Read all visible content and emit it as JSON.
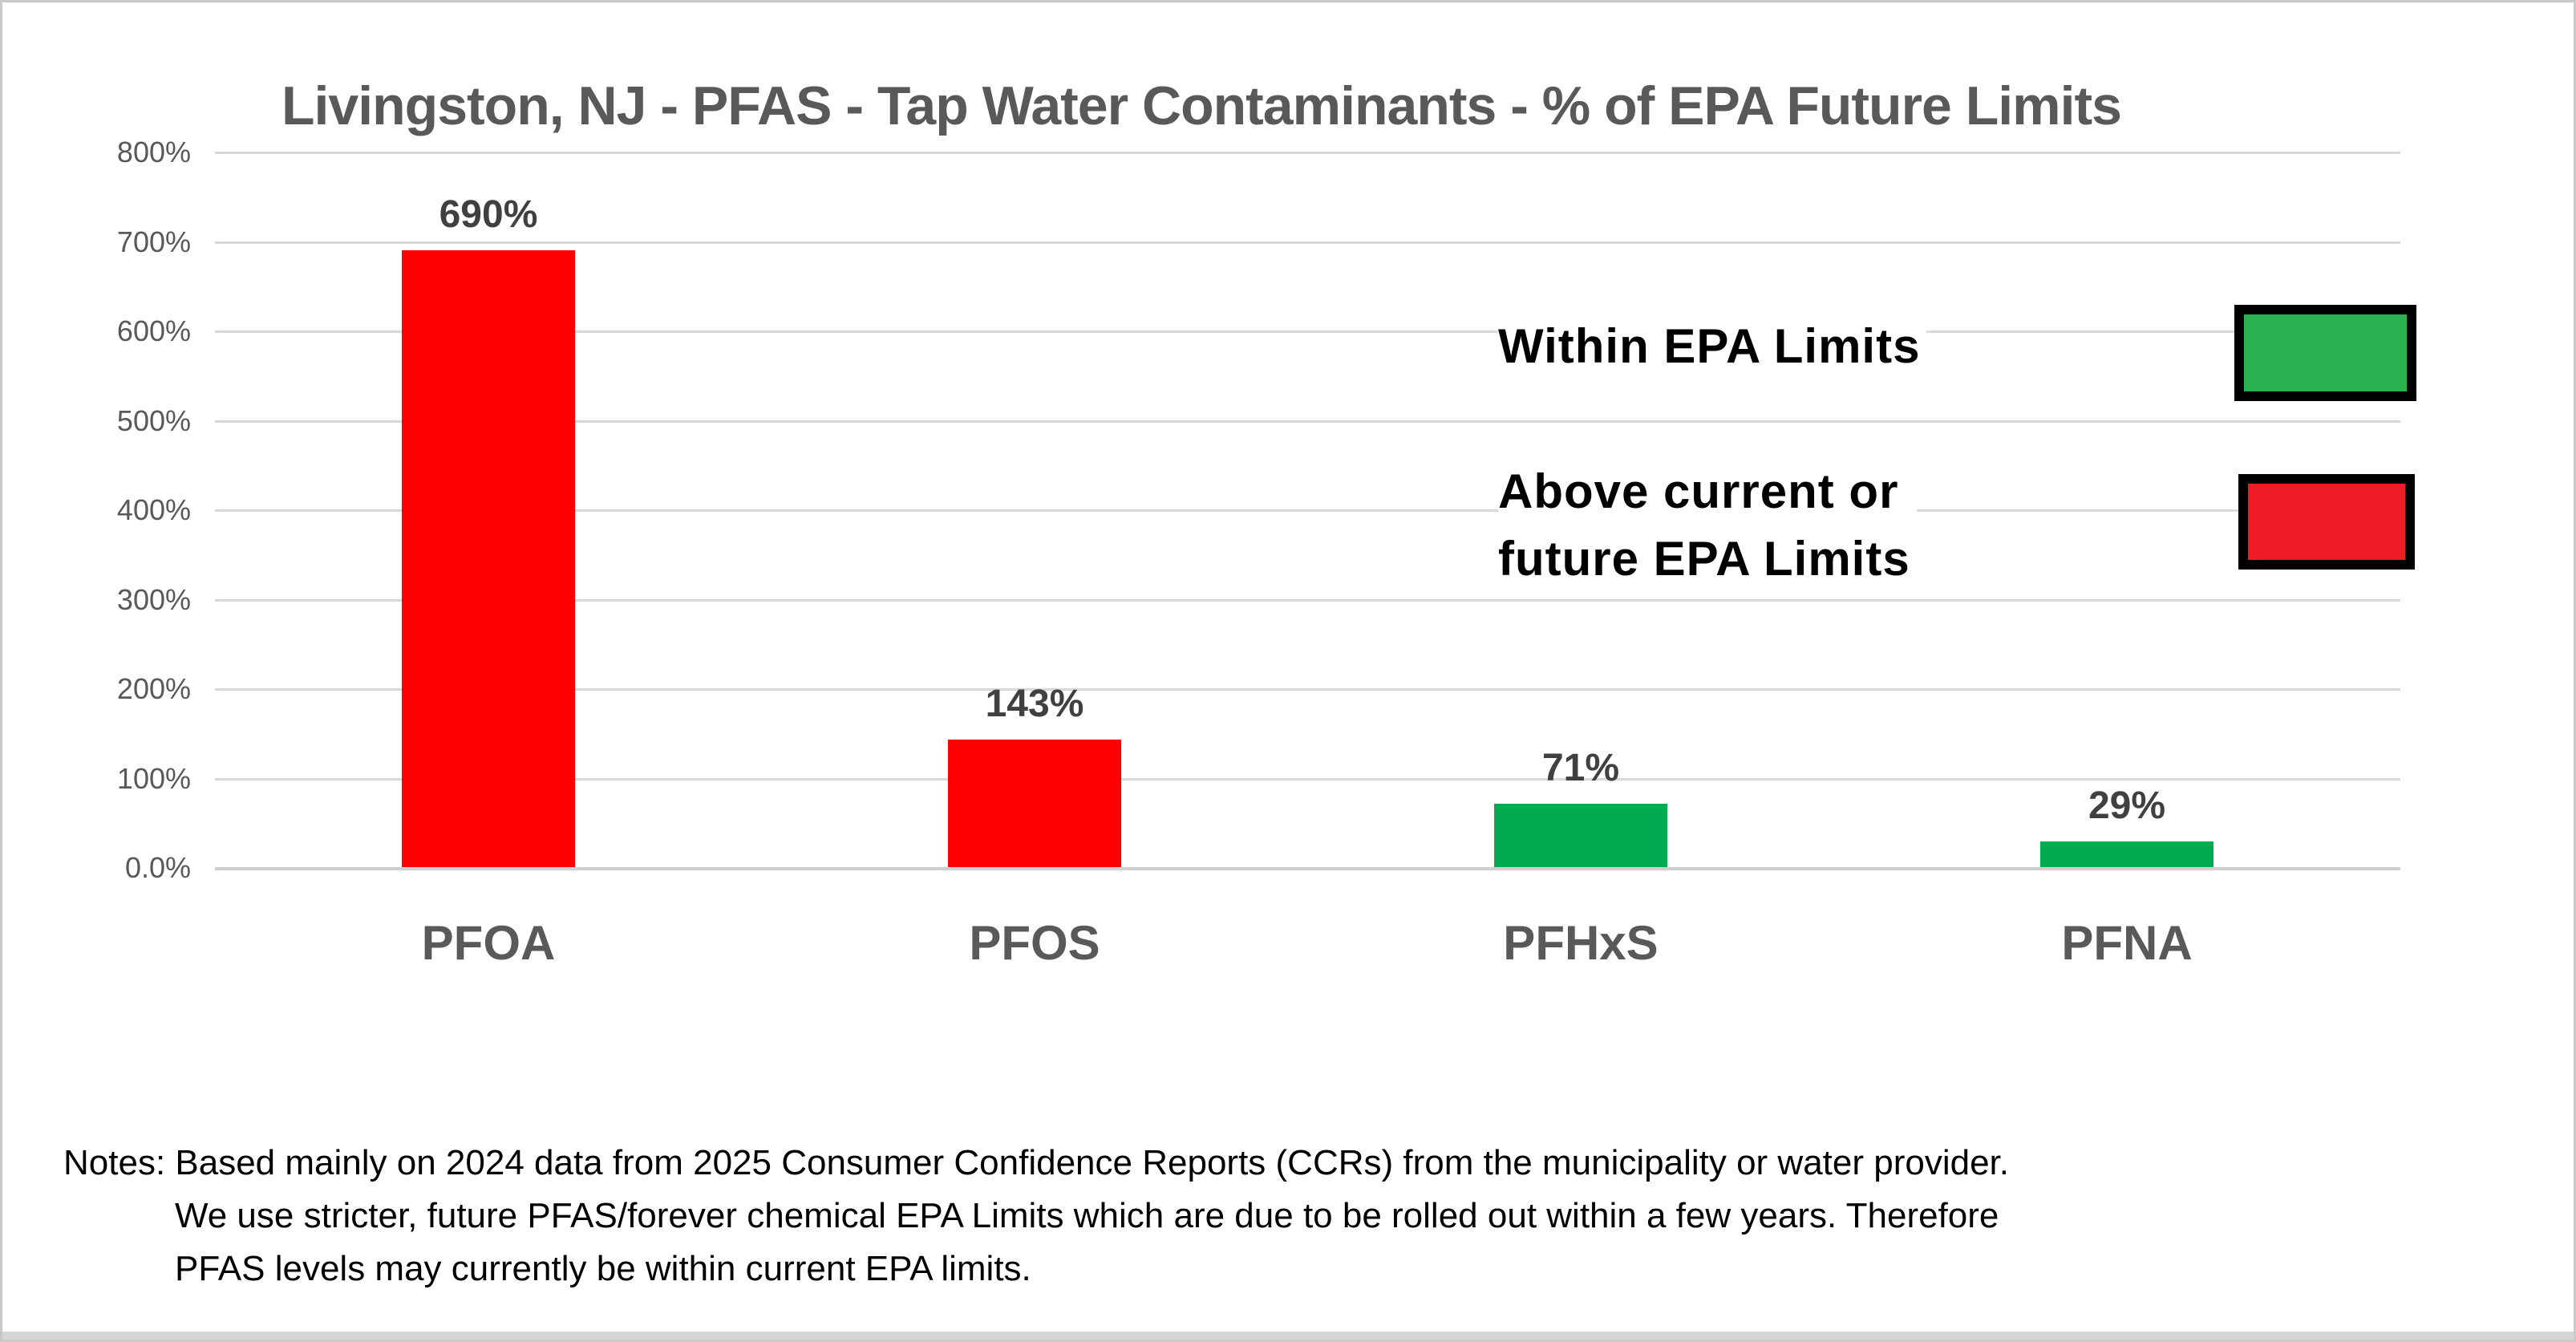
{
  "chart_data": {
    "type": "bar",
    "title": "Livingston, NJ - PFAS - Tap Water Contaminants - % of EPA Future Limits",
    "categories": [
      "PFOA",
      "PFOS",
      "PFHxS",
      "PFNA"
    ],
    "values": [
      690,
      143,
      71,
      29
    ],
    "value_labels": [
      "690%",
      "143%",
      "71%",
      "29%"
    ],
    "bar_colors": [
      "#ff0000",
      "#ff0000",
      "#00ac4f",
      "#00ac4f"
    ],
    "xlabel": "",
    "ylabel": "",
    "ylim": [
      0,
      800
    ],
    "ytick_values": [
      0,
      100,
      200,
      300,
      400,
      500,
      600,
      700,
      800
    ],
    "ytick_labels": [
      "0.0%",
      "100%",
      "200%",
      "300%",
      "400%",
      "500%",
      "600%",
      "700%",
      "800%"
    ],
    "grid": true,
    "legend_position": "right-inside",
    "legend": [
      {
        "label": "Within EPA Limits",
        "lines": [
          "Within EPA Limits"
        ],
        "color": "#27b24f"
      },
      {
        "label": "Above current or future EPA Limits",
        "lines": [
          "Above current or",
          "future EPA Limits"
        ],
        "color": "#ee1c25"
      }
    ]
  },
  "notes": {
    "prefix": "Notes: ",
    "line1": "Based mainly on 2024 data from 2025 Consumer Confidence Reports (CCRs) from the municipality or water provider.",
    "line2": "We use stricter, future PFAS/forever chemical EPA Limits which are due to be rolled out within a few years.  Therefore",
    "line3": "PFAS  levels may currently be within current EPA limits."
  },
  "colors": {
    "grid": "#d9d9d9",
    "baseline": "#cfcfcf",
    "axis_text": "#595959",
    "title_text": "#595959",
    "value_label_text": "#404040",
    "category_label_text": "#595959",
    "legend_text": "#000000",
    "notes_text": "#000000",
    "bar_red": "#ff0000",
    "bar_green": "#00ac4f",
    "legend_green": "#27b24f",
    "legend_red": "#ee1c25",
    "page_border": "#c9c9c9",
    "bottom_strip": "#d5d5d5"
  }
}
